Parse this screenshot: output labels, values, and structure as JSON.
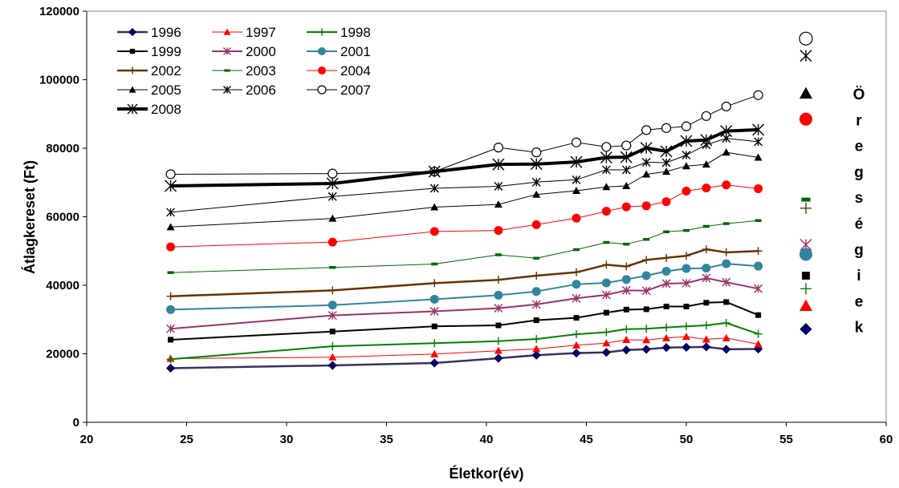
{
  "chart_data": {
    "type": "line",
    "xlabel": "Életkor(év)",
    "ylabel": "Átlagkereset (Ft)",
    "xlim": [
      20,
      60
    ],
    "ylim": [
      0,
      120000
    ],
    "xticks": [
      20,
      25,
      30,
      35,
      40,
      45,
      50,
      55,
      60
    ],
    "yticks": [
      0,
      20000,
      40000,
      60000,
      80000,
      100000,
      120000
    ],
    "legend_position": "top-left",
    "grid": false,
    "side_annotation": "Öregségiek",
    "x": [
      24.2,
      32.3,
      37.4,
      40.6,
      42.5,
      44.5,
      46.0,
      47.0,
      48.0,
      49.0,
      50.0,
      51.0,
      52.0,
      53.6
    ],
    "series": [
      {
        "name": "1996",
        "color": "#333366",
        "marker": "diamond",
        "marker_color": "#000080",
        "line_width": 2.5,
        "values": [
          15800,
          16600,
          17300,
          18700,
          19600,
          20200,
          20400,
          21100,
          21300,
          21800,
          21900,
          22000,
          21300,
          21400
        ],
        "elder_value": 27200
      },
      {
        "name": "1997",
        "color": "#ff0000",
        "marker": "triangle",
        "marker_color": "#ff0000",
        "line_width": 1,
        "values": [
          18600,
          19000,
          19900,
          20900,
          21400,
          22500,
          23100,
          24100,
          24000,
          24600,
          25000,
          24200,
          24600,
          22800
        ],
        "elder_value": 34000
      },
      {
        "name": "1998",
        "color": "#008000",
        "marker": "plus",
        "marker_color": "#008000",
        "line_width": 2,
        "values": [
          18400,
          22200,
          23100,
          23700,
          24300,
          25700,
          26300,
          27200,
          27300,
          27700,
          28000,
          28300,
          29000,
          25800
        ],
        "elder_value": 39000
      },
      {
        "name": "1999",
        "color": "#000000",
        "marker": "square",
        "marker_color": "#000000",
        "line_width": 2,
        "values": [
          24100,
          26500,
          28000,
          28300,
          29800,
          30500,
          32000,
          32900,
          33000,
          33800,
          33800,
          34900,
          35100,
          31300
        ],
        "elder_value": 42800
      },
      {
        "name": "2000",
        "color": "#993366",
        "marker": "asterisk",
        "marker_color": "#993366",
        "line_width": 2,
        "values": [
          27300,
          31200,
          32400,
          33300,
          34400,
          36200,
          37200,
          38500,
          38400,
          40500,
          40600,
          42100,
          40900,
          39000
        ],
        "elder_value": 51800
      },
      {
        "name": "2001",
        "color": "#31859c",
        "marker": "circle",
        "marker_color": "#31859c",
        "line_width": 2,
        "values": [
          32900,
          34200,
          35900,
          37100,
          38200,
          40300,
          40700,
          41700,
          42800,
          44100,
          44900,
          45000,
          46300,
          45600
        ],
        "elder_value": 49000
      },
      {
        "name": "2002",
        "color": "#663300",
        "marker": "plus",
        "marker_color": "#663300",
        "line_width": 2.5,
        "values": [
          36800,
          38500,
          40600,
          41600,
          42800,
          43800,
          46000,
          45500,
          47400,
          48000,
          48600,
          50500,
          49600,
          50000
        ],
        "elder_value": 62500
      },
      {
        "name": "2003",
        "color": "#006400",
        "marker": "dash",
        "marker_color": "#006400",
        "line_width": 1,
        "values": [
          43700,
          45200,
          46200,
          48900,
          47900,
          50400,
          52500,
          52000,
          53400,
          55600,
          56000,
          57200,
          58000,
          58900
        ],
        "elder_value": 65000
      },
      {
        "name": "2004",
        "color": "#ff0000",
        "marker": "circle",
        "marker_color": "#ff0000",
        "line_width": 1,
        "values": [
          51200,
          52600,
          55700,
          56000,
          57700,
          59600,
          61600,
          62900,
          63200,
          64400,
          67500,
          68400,
          69300,
          68200
        ],
        "elder_value": 88500
      },
      {
        "name": "2005",
        "color": "#000000",
        "marker": "triangle",
        "marker_color": "#000000",
        "line_width": 1,
        "values": [
          57000,
          59500,
          62800,
          63600,
          66500,
          67600,
          68700,
          69000,
          72400,
          73200,
          74800,
          75300,
          78800,
          77300
        ],
        "elder_value": 96000
      },
      {
        "name": "2006",
        "color": "#000000",
        "marker": "asterisk",
        "marker_color": "#000000",
        "line_width": 1,
        "values": [
          61300,
          65900,
          68300,
          68900,
          70100,
          70800,
          73700,
          73700,
          75900,
          75800,
          78000,
          81000,
          82900,
          81900
        ],
        "elder_value": 107000
      },
      {
        "name": "2007",
        "color": "#000000",
        "marker": "open-circle",
        "marker_color": "#000000",
        "line_width": 1,
        "values": [
          72400,
          72600,
          73200,
          80200,
          78800,
          81700,
          80400,
          80800,
          85300,
          85900,
          86400,
          89400,
          92200,
          95500
        ],
        "elder_value": 112000
      },
      {
        "name": "2008",
        "color": "#000000",
        "marker": "asterisk",
        "marker_color": "#000000",
        "line_width": 4,
        "values": [
          69000,
          69700,
          73200,
          75300,
          75400,
          76000,
          77300,
          77400,
          80100,
          79100,
          82100,
          82400,
          85000,
          85400
        ],
        "elder_value": null
      }
    ]
  }
}
